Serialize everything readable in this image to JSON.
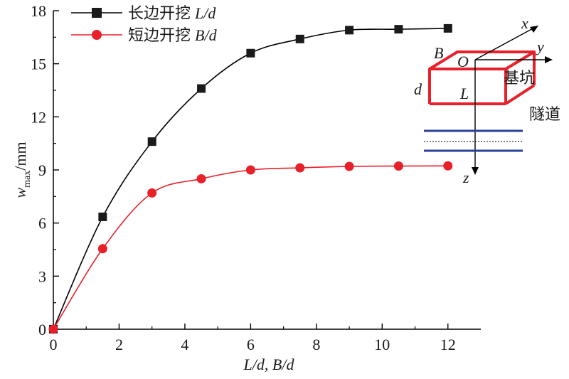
{
  "chart_data": {
    "type": "line",
    "xlabel": "L/d, B/d",
    "ylabel": "w_max/mm",
    "xlim": [
      0,
      13
    ],
    "ylim": [
      0,
      18
    ],
    "xticks": [
      0,
      2,
      4,
      6,
      8,
      10,
      12
    ],
    "yticks": [
      0,
      3,
      6,
      9,
      12,
      15,
      18
    ],
    "grid": false,
    "legend_position": "top-left",
    "series": [
      {
        "name": "长边开挖 L/d",
        "name_cn": "长边开挖",
        "name_var": "L/d",
        "color": "#000000",
        "marker": "square",
        "x": [
          0,
          1.5,
          3,
          4.5,
          6,
          7.5,
          9,
          10.5,
          12
        ],
        "y": [
          0,
          6.35,
          10.6,
          13.6,
          15.6,
          16.4,
          16.9,
          16.95,
          17.0
        ]
      },
      {
        "name": "短边开挖 B/d",
        "name_cn": "短边开挖",
        "name_var": "B/d",
        "color": "#e8202a",
        "marker": "circle",
        "x": [
          0,
          1.5,
          3,
          4.5,
          6,
          7.5,
          9,
          10.5,
          12
        ],
        "y": [
          0,
          4.55,
          7.7,
          8.5,
          9.0,
          9.12,
          9.2,
          9.22,
          9.23
        ]
      }
    ]
  },
  "inset": {
    "label_x": "x",
    "label_y": "y",
    "label_z": "z",
    "label_O": "O",
    "label_B": "B",
    "label_L": "L",
    "label_d": "d",
    "pit_label": "基坑",
    "tunnel_label": "隧道",
    "pit_color": "#e8202a",
    "tunnel_color": "#2a3f9a"
  }
}
